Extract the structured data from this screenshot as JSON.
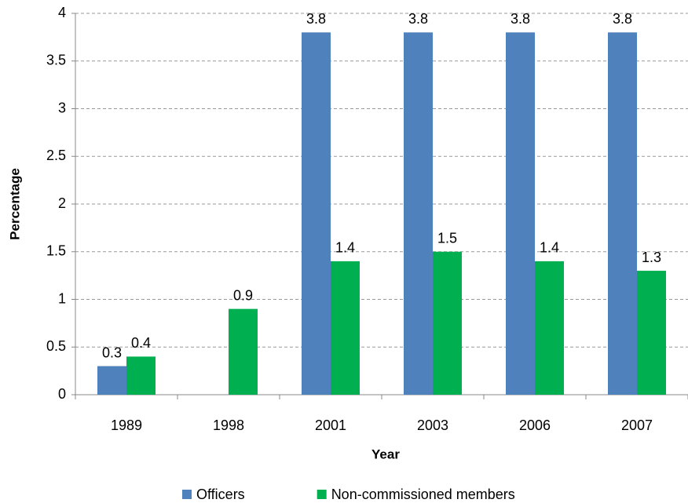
{
  "chart_data": {
    "type": "bar",
    "x_label": "Year",
    "y_label": "Percentage",
    "categories": [
      "1989",
      "1998",
      "2001",
      "2003",
      "2006",
      "2007"
    ],
    "series": [
      {
        "name": "Officers",
        "color": "#4f81bd",
        "values": [
          0.3,
          null,
          3.8,
          3.8,
          3.8,
          3.8
        ]
      },
      {
        "name": "Non-commissioned members",
        "color": "#00b050",
        "values": [
          0.4,
          0.9,
          1.4,
          1.5,
          1.4,
          1.3
        ]
      }
    ],
    "ylim": [
      0,
      4
    ],
    "yticks": [
      0,
      0.5,
      1,
      1.5,
      2,
      2.5,
      3,
      3.5,
      4
    ],
    "grid": true,
    "legend": "bottom"
  }
}
